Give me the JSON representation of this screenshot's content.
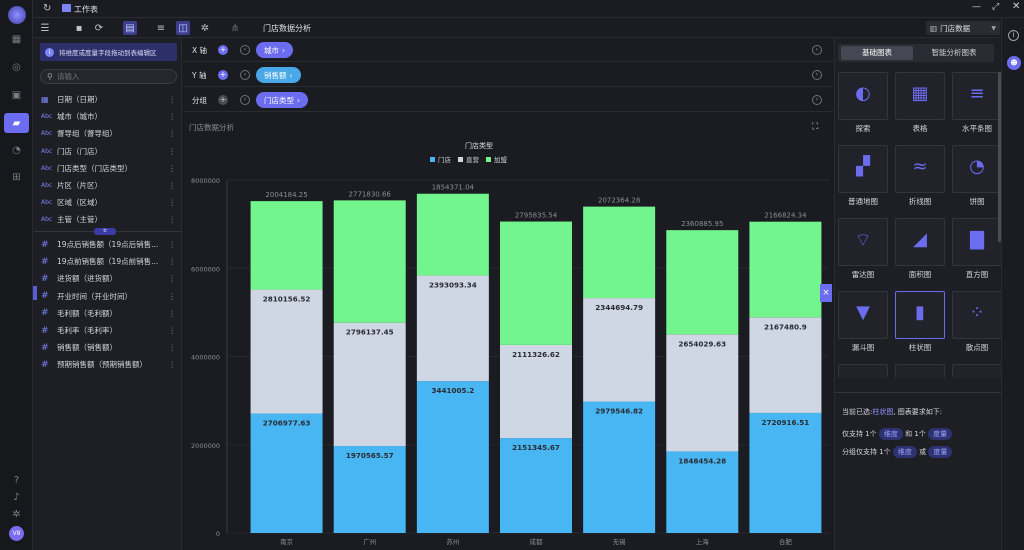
{
  "window": {
    "title": "工作表"
  },
  "toolbar": {
    "sheet_title": "门店数据分析",
    "dataset": "门店数据"
  },
  "left_panel": {
    "hint": "将维度或度量字段拖动到表编辑区",
    "search_placeholder": "请输入",
    "dimensions": [
      {
        "icon": "calendar-icon",
        "label": "日期（日期）"
      },
      {
        "icon": "Abc",
        "label": "城市（城市）"
      },
      {
        "icon": "Abc",
        "label": "督导组（督导组）"
      },
      {
        "icon": "Abc",
        "label": "门店（门店）"
      },
      {
        "icon": "Abc",
        "label": "门店类型（门店类型）"
      },
      {
        "icon": "Abc",
        "label": "片区（片区）"
      },
      {
        "icon": "Abc",
        "label": "区域（区域）"
      },
      {
        "icon": "Abc",
        "label": "主管（主管）"
      }
    ],
    "measures": [
      {
        "icon": "#",
        "label": "19点后销售额（19点后销售..."
      },
      {
        "icon": "#",
        "label": "19点前销售额（19点前销售..."
      },
      {
        "icon": "#",
        "label": "进货额（进货额）"
      },
      {
        "icon": "#",
        "label": "开业时间（开业时间）"
      },
      {
        "icon": "#",
        "label": "毛利额（毛利额）"
      },
      {
        "icon": "#",
        "label": "毛利率（毛利率）"
      },
      {
        "icon": "#",
        "label": "销售额（销售额）"
      },
      {
        "icon": "#",
        "label": "预期销售额（预期销售额）"
      }
    ],
    "user_initials": "V8"
  },
  "axes": {
    "x": {
      "label": "X 轴",
      "field": "城市"
    },
    "y": {
      "label": "Y 轴",
      "field": "销售额"
    },
    "group": {
      "label": "分组",
      "field": "门店类型"
    }
  },
  "chart_title": "门店数据分析",
  "chart_data": {
    "type": "bar",
    "stacked": true,
    "legend_title": "门店类型",
    "legend_position": "top-center",
    "categories": [
      "南京",
      "广州",
      "苏州",
      "成都",
      "无锡",
      "上海",
      "合肥"
    ],
    "series": [
      {
        "name": "门店",
        "color": "#48b6f2",
        "values": [
          2706977.63,
          1970565.57,
          3441005.2,
          2151345.67,
          2979546.82,
          1848454.28,
          2720916.51
        ]
      },
      {
        "name": "直营",
        "color": "#cfd6e4",
        "values": [
          2810156.52,
          2796137.45,
          2393093.34,
          2111326.62,
          2344694.79,
          2654029.63,
          2167480.9
        ]
      },
      {
        "name": "加盟",
        "color": "#72f58c",
        "values": [
          2004184.25,
          2771830.66,
          1854371.04,
          2795835.54,
          2072364.28,
          2360885.95,
          2166824.34
        ]
      }
    ],
    "y_ticks": [
      "8000000",
      "6000000",
      "4000000",
      "2000000",
      "0"
    ],
    "ylim": [
      0,
      8000000
    ]
  },
  "right_panel": {
    "tabs": [
      "基础图表",
      "智能分析图表"
    ],
    "charts": [
      "探索",
      "表格",
      "水平条图",
      "普通地图",
      "折线图",
      "饼图",
      "雷达图",
      "面积图",
      "直方图",
      "漏斗图",
      "柱状图",
      "散点图"
    ],
    "info": {
      "selected_prefix": "当前已选:",
      "selected": "柱状图",
      "selected_suffix": ", 图表要求如下:",
      "req1_a": "仅支持 1个",
      "req1_tag1": "维度",
      "req1_b": "和 1个",
      "req1_tag2": "度量",
      "req2_a": "分组仅支持 1个",
      "req2_tag1": "维度",
      "req2_b": "或",
      "req2_tag2": "度量"
    }
  }
}
